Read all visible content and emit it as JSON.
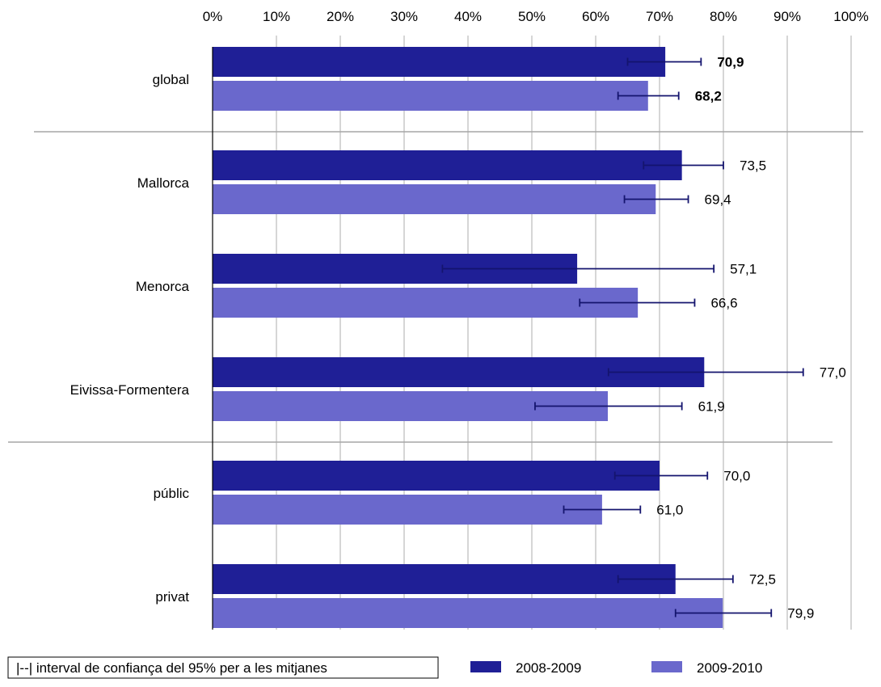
{
  "chart_data": {
    "type": "bar",
    "orientation": "horizontal",
    "x_ticks": [
      "0%",
      "10%",
      "20%",
      "30%",
      "40%",
      "50%",
      "60%",
      "70%",
      "80%",
      "90%",
      "100%"
    ],
    "xlim": [
      0,
      100
    ],
    "grid": true,
    "categories": [
      "global",
      "Mallorca",
      "Menorca",
      "Eivissa-Formentera",
      "públic",
      "privat"
    ],
    "series": [
      {
        "name": "2008-2009",
        "color": "#1f1f96",
        "values": [
          70.9,
          73.5,
          57.1,
          77.0,
          70.0,
          72.5
        ],
        "labels": [
          "70,9",
          "73,5",
          "57,1",
          "77,0",
          "70,0",
          "72,5"
        ],
        "ci": [
          [
            65.0,
            76.5
          ],
          [
            67.5,
            80.0
          ],
          [
            36.0,
            78.5
          ],
          [
            62.0,
            92.5
          ],
          [
            63.0,
            77.5
          ],
          [
            63.5,
            81.5
          ]
        ]
      },
      {
        "name": "2009-2010",
        "color": "#6a68cc",
        "values": [
          68.2,
          69.4,
          66.6,
          61.9,
          61.0,
          79.9
        ],
        "labels": [
          "68,2",
          "69,4",
          "66,6",
          "61,9",
          "61,0",
          "79,9"
        ],
        "ci": [
          [
            63.5,
            73.0
          ],
          [
            64.5,
            74.5
          ],
          [
            57.5,
            75.5
          ],
          [
            50.5,
            73.5
          ],
          [
            55.0,
            67.0
          ],
          [
            72.5,
            87.5
          ]
        ]
      }
    ],
    "bold_label_categories": [
      "global"
    ],
    "legend_note": "|--|  interval de confiança del 95% per a les mitjanes",
    "legend_placement": "bottom"
  }
}
